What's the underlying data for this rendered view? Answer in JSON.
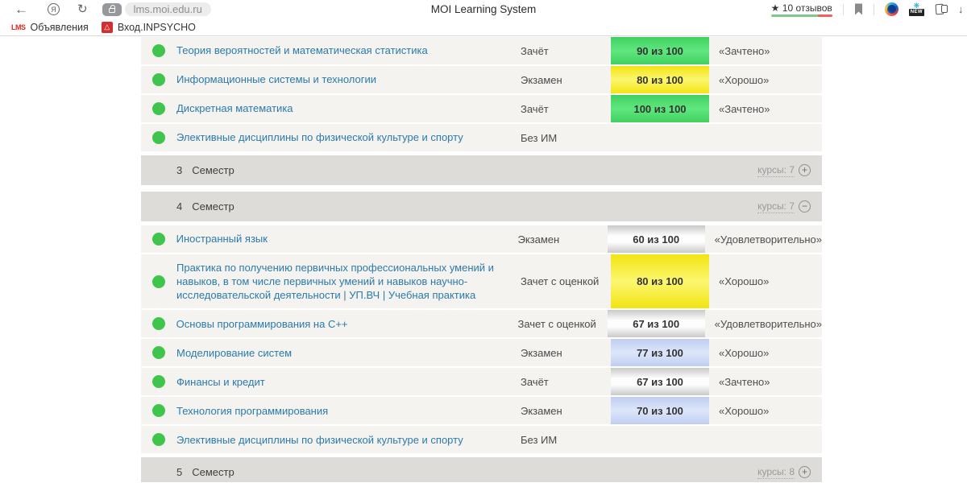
{
  "browser": {
    "url": "lms.moi.edu.ru",
    "page_title": "MOI Learning System",
    "reviews_star": "★",
    "reviews_label": "10 отзывов",
    "new_badge": "NEW",
    "bookmarks": [
      {
        "favicon_text": "LMS",
        "label": "Объявления"
      },
      {
        "favicon_text": "△",
        "label": "Вход.INPSYCHO"
      }
    ]
  },
  "colors": {
    "score_green": "#4fd968",
    "score_yellow": "#f3e411",
    "score_neutral": "#ffffff",
    "score_blue": "#c9d6f5",
    "status_dot_green": "#3fc54b",
    "link_blue": "#2b7aab",
    "semester_header_bg": "#dedcd8",
    "row_bg": "#f5f3ef",
    "reviews_bar_green": "#7cc98b",
    "reviews_bar_red": "#f0625a"
  },
  "table": {
    "rows": [
      {
        "type": "course",
        "title": "Теория вероятностей и математическая статистика",
        "exam": "Зачёт",
        "score": "90 из 100",
        "score_color": "green",
        "grade": "«Зачтено»"
      },
      {
        "type": "course",
        "title": "Информационные системы и технологии",
        "exam": "Экзамен",
        "score": "80 из 100",
        "score_color": "yellow",
        "grade": "«Хорошо»"
      },
      {
        "type": "course",
        "title": "Дискретная математика",
        "exam": "Зачёт",
        "score": "100 из 100",
        "score_color": "green",
        "grade": "«Зачтено»"
      },
      {
        "type": "course",
        "title": "Элективные дисциплины по физической культуре и спорту",
        "exam": "Без ИМ",
        "score": "",
        "score_color": "",
        "grade": ""
      },
      {
        "type": "semester",
        "number": "3",
        "label": "Семестр",
        "courses_label": "курсы: 7",
        "toggle": "plus"
      },
      {
        "type": "semester",
        "number": "4",
        "label": "Семестр",
        "courses_label": "курсы: 7",
        "toggle": "minus"
      },
      {
        "type": "course",
        "title": "Иностранный язык",
        "exam": "Экзамен",
        "score": "60 из 100",
        "score_color": "white",
        "grade": "«Удовлетворительно»"
      },
      {
        "type": "course",
        "title": "Практика по получению первичных профессиональных умений и навыков, в том числе первичных умений и навыков научно-исследовательской деятельности | УП.ВЧ | Учебная практика",
        "exam": "Зачет с оценкой",
        "score": "80 из 100",
        "score_color": "yellow",
        "grade": "«Хорошо»"
      },
      {
        "type": "course",
        "title": "Основы программирования на C++",
        "exam": "Зачет с оценкой",
        "score": "67 из 100",
        "score_color": "white",
        "grade": "«Удовлетворительно»"
      },
      {
        "type": "course",
        "title": "Моделирование систем",
        "exam": "Экзамен",
        "score": "77 из 100",
        "score_color": "blue",
        "grade": "«Хорошо»"
      },
      {
        "type": "course",
        "title": "Финансы и кредит",
        "exam": "Зачёт",
        "score": "67 из 100",
        "score_color": "white",
        "grade": "«Зачтено»"
      },
      {
        "type": "course",
        "title": "Технология программирования",
        "exam": "Экзамен",
        "score": "70 из 100",
        "score_color": "blue",
        "grade": "«Хорошо»"
      },
      {
        "type": "course",
        "title": "Элективные дисциплины по физической культуре и спорту",
        "exam": "Без ИМ",
        "score": "",
        "score_color": "",
        "grade": ""
      },
      {
        "type": "semester",
        "number": "5",
        "label": "Семестр",
        "courses_label": "курсы: 8",
        "toggle": "plus"
      }
    ]
  }
}
